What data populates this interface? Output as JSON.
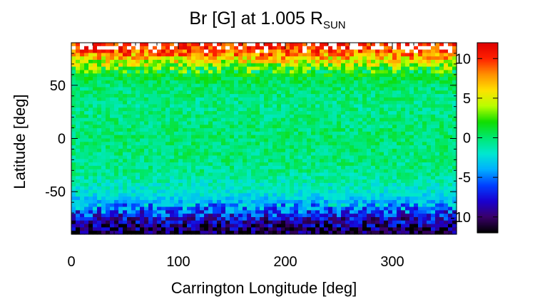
{
  "chart_data": {
    "type": "heatmap",
    "title_main": "Br [G] at 1.005 R",
    "title_sub": "SUN",
    "xlabel": "Carrington Longitude [deg]",
    "ylabel": "Latitude [deg]",
    "xlim": [
      0,
      360
    ],
    "ylim": [
      -90,
      90
    ],
    "x_ticks": [
      0,
      100,
      200,
      300
    ],
    "y_ticks": [
      -50,
      0,
      50
    ],
    "colorbar": {
      "range": [
        -12,
        12
      ],
      "ticks": [
        -10,
        -5,
        0,
        5,
        10
      ],
      "colormap": [
        "#000000",
        "#3a006a",
        "#1a00d0",
        "#0040ff",
        "#00b0ff",
        "#00e8d0",
        "#00e870",
        "#10dd00",
        "#b8ff00",
        "#ffe000",
        "#ff9000",
        "#ff2000",
        "#dd0000"
      ]
    },
    "latitude_profile_Br": [
      {
        "lat": 85,
        "Br": 11
      },
      {
        "lat": 75,
        "Br": 6
      },
      {
        "lat": 65,
        "Br": 2
      },
      {
        "lat": 50,
        "Br": 0
      },
      {
        "lat": 30,
        "Br": -0.5
      },
      {
        "lat": 0,
        "Br": 0
      },
      {
        "lat": -30,
        "Br": -0.5
      },
      {
        "lat": -50,
        "Br": -2
      },
      {
        "lat": -62,
        "Br": -4
      },
      {
        "lat": -72,
        "Br": -7
      },
      {
        "lat": -80,
        "Br": -9
      },
      {
        "lat": -88,
        "Br": -11
      }
    ]
  }
}
